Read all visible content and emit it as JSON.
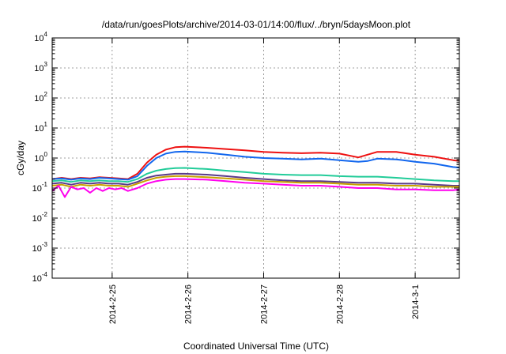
{
  "chart_data": {
    "type": "line",
    "title": "/data/run/goesPlots/archive/2014-03-01/14:00/flux/../bryn/5daysMoon.plot",
    "xlabel": "Coordinated Universal Time (UTC)",
    "ylabel": "cGy/day",
    "y_scale": "log",
    "ylim": [
      0.0001,
      10000
    ],
    "xlim": [
      "2014-02-24T05:00",
      "2014-03-01T14:00"
    ],
    "grid": true,
    "legend": "none",
    "y_ticks": [
      {
        "value": 0.0001,
        "base": "10",
        "exp": "-4"
      },
      {
        "value": 0.001,
        "base": "10",
        "exp": "-3"
      },
      {
        "value": 0.01,
        "base": "10",
        "exp": "-2"
      },
      {
        "value": 0.1,
        "base": "10",
        "exp": "-1"
      },
      {
        "value": 1,
        "base": "10",
        "exp": "0"
      },
      {
        "value": 10,
        "base": "10",
        "exp": "1"
      },
      {
        "value": 100,
        "base": "10",
        "exp": "2"
      },
      {
        "value": 1000,
        "base": "10",
        "exp": "3"
      },
      {
        "value": 10000,
        "base": "10",
        "exp": "4"
      }
    ],
    "x_ticks": [
      {
        "value": "2014-02-25T00:00",
        "label": "2014-2-25"
      },
      {
        "value": "2014-02-26T00:00",
        "label": "2014-2-26"
      },
      {
        "value": "2014-02-27T00:00",
        "label": "2014-2-27"
      },
      {
        "value": "2014-02-28T00:00",
        "label": "2014-2-28"
      },
      {
        "value": "2014-03-01T00:00",
        "label": "2014-3-1"
      }
    ],
    "series": [
      {
        "color": "#ee1111",
        "x": [
          "2014-02-24T05:00",
          "2014-02-24T08:00",
          "2014-02-24T11:00",
          "2014-02-24T14:00",
          "2014-02-24T17:00",
          "2014-02-24T20:00",
          "2014-02-24T23:00",
          "2014-02-25T02:00",
          "2014-02-25T05:00",
          "2014-02-25T08:00",
          "2014-02-25T11:00",
          "2014-02-25T14:00",
          "2014-02-25T17:00",
          "2014-02-25T20:00",
          "2014-02-25T23:00",
          "2014-02-26T06:00",
          "2014-02-26T12:00",
          "2014-02-26T18:00",
          "2014-02-27T00:00",
          "2014-02-27T06:00",
          "2014-02-27T12:00",
          "2014-02-27T18:00",
          "2014-02-28T00:00",
          "2014-02-28T06:00",
          "2014-02-28T09:00",
          "2014-02-28T12:00",
          "2014-02-28T18:00",
          "2014-03-01T00:00",
          "2014-03-01T06:00",
          "2014-03-01T12:00",
          "2014-03-01T14:00"
        ],
        "y": [
          0.2,
          0.22,
          0.2,
          0.22,
          0.21,
          0.23,
          0.22,
          0.21,
          0.2,
          0.3,
          0.7,
          1.3,
          1.9,
          2.3,
          2.4,
          2.2,
          2.0,
          1.8,
          1.6,
          1.5,
          1.45,
          1.5,
          1.4,
          1.05,
          1.3,
          1.6,
          1.6,
          1.3,
          1.1,
          0.85,
          0.8
        ]
      },
      {
        "color": "#1166ee",
        "x": [
          "2014-02-24T05:00",
          "2014-02-24T08:00",
          "2014-02-24T11:00",
          "2014-02-24T14:00",
          "2014-02-24T17:00",
          "2014-02-24T20:00",
          "2014-02-24T23:00",
          "2014-02-25T02:00",
          "2014-02-25T05:00",
          "2014-02-25T08:00",
          "2014-02-25T11:00",
          "2014-02-25T14:00",
          "2014-02-25T17:00",
          "2014-02-25T20:00",
          "2014-02-25T23:00",
          "2014-02-26T06:00",
          "2014-02-26T12:00",
          "2014-02-26T18:00",
          "2014-02-27T00:00",
          "2014-02-27T06:00",
          "2014-02-27T12:00",
          "2014-02-27T18:00",
          "2014-02-28T00:00",
          "2014-02-28T06:00",
          "2014-02-28T09:00",
          "2014-02-28T12:00",
          "2014-02-28T18:00",
          "2014-03-01T00:00",
          "2014-03-01T06:00",
          "2014-03-01T12:00",
          "2014-03-01T14:00"
        ],
        "y": [
          0.2,
          0.21,
          0.19,
          0.21,
          0.2,
          0.22,
          0.21,
          0.2,
          0.19,
          0.25,
          0.55,
          1.0,
          1.4,
          1.6,
          1.65,
          1.5,
          1.3,
          1.1,
          1.0,
          0.95,
          0.9,
          0.95,
          0.85,
          0.75,
          0.8,
          0.95,
          0.9,
          0.75,
          0.65,
          0.5,
          0.48
        ]
      },
      {
        "color": "#22cc99",
        "x": [
          "2014-02-24T05:00",
          "2014-02-24T08:00",
          "2014-02-24T11:00",
          "2014-02-24T14:00",
          "2014-02-24T17:00",
          "2014-02-24T20:00",
          "2014-02-24T23:00",
          "2014-02-25T02:00",
          "2014-02-25T05:00",
          "2014-02-25T08:00",
          "2014-02-25T11:00",
          "2014-02-25T14:00",
          "2014-02-25T17:00",
          "2014-02-25T20:00",
          "2014-02-25T23:00",
          "2014-02-26T06:00",
          "2014-02-26T12:00",
          "2014-02-26T18:00",
          "2014-02-27T00:00",
          "2014-02-27T06:00",
          "2014-02-27T12:00",
          "2014-02-27T18:00",
          "2014-02-28T00:00",
          "2014-02-28T06:00",
          "2014-02-28T12:00",
          "2014-02-28T18:00",
          "2014-03-01T00:00",
          "2014-03-01T06:00",
          "2014-03-01T12:00",
          "2014-03-01T14:00"
        ],
        "y": [
          0.17,
          0.18,
          0.16,
          0.18,
          0.17,
          0.18,
          0.17,
          0.17,
          0.16,
          0.2,
          0.3,
          0.38,
          0.43,
          0.46,
          0.47,
          0.43,
          0.38,
          0.34,
          0.3,
          0.28,
          0.27,
          0.27,
          0.25,
          0.24,
          0.24,
          0.22,
          0.2,
          0.18,
          0.17,
          0.17
        ]
      },
      {
        "color": "#5a3a8a",
        "x": [
          "2014-02-24T05:00",
          "2014-02-24T08:00",
          "2014-02-24T11:00",
          "2014-02-24T14:00",
          "2014-02-24T17:00",
          "2014-02-24T20:00",
          "2014-02-24T23:00",
          "2014-02-25T02:00",
          "2014-02-25T05:00",
          "2014-02-25T08:00",
          "2014-02-25T11:00",
          "2014-02-25T14:00",
          "2014-02-25T17:00",
          "2014-02-25T20:00",
          "2014-02-25T23:00",
          "2014-02-26T06:00",
          "2014-02-26T12:00",
          "2014-02-26T18:00",
          "2014-02-27T00:00",
          "2014-02-27T06:00",
          "2014-02-27T12:00",
          "2014-02-27T18:00",
          "2014-02-28T00:00",
          "2014-02-28T06:00",
          "2014-02-28T12:00",
          "2014-02-28T18:00",
          "2014-03-01T00:00",
          "2014-03-01T06:00",
          "2014-03-01T12:00",
          "2014-03-01T14:00"
        ],
        "y": [
          0.14,
          0.15,
          0.13,
          0.15,
          0.14,
          0.15,
          0.14,
          0.14,
          0.13,
          0.16,
          0.22,
          0.26,
          0.28,
          0.3,
          0.3,
          0.28,
          0.25,
          0.22,
          0.2,
          0.18,
          0.17,
          0.17,
          0.16,
          0.15,
          0.15,
          0.14,
          0.14,
          0.13,
          0.12,
          0.12
        ]
      },
      {
        "color": "#c8a000",
        "x": [
          "2014-02-24T05:00",
          "2014-02-24T08:00",
          "2014-02-24T11:00",
          "2014-02-24T14:00",
          "2014-02-24T17:00",
          "2014-02-24T20:00",
          "2014-02-24T23:00",
          "2014-02-25T02:00",
          "2014-02-25T05:00",
          "2014-02-25T08:00",
          "2014-02-25T11:00",
          "2014-02-25T14:00",
          "2014-02-25T17:00",
          "2014-02-25T20:00",
          "2014-02-25T23:00",
          "2014-02-26T06:00",
          "2014-02-26T12:00",
          "2014-02-26T18:00",
          "2014-02-27T00:00",
          "2014-02-27T06:00",
          "2014-02-27T12:00",
          "2014-02-27T18:00",
          "2014-02-28T00:00",
          "2014-02-28T06:00",
          "2014-02-28T12:00",
          "2014-02-28T18:00",
          "2014-03-01T00:00",
          "2014-03-01T06:00",
          "2014-03-01T12:00",
          "2014-03-01T14:00"
        ],
        "y": [
          0.12,
          0.13,
          0.11,
          0.13,
          0.12,
          0.13,
          0.12,
          0.12,
          0.11,
          0.14,
          0.18,
          0.22,
          0.24,
          0.25,
          0.25,
          0.23,
          0.21,
          0.19,
          0.17,
          0.16,
          0.15,
          0.15,
          0.14,
          0.13,
          0.13,
          0.12,
          0.12,
          0.11,
          0.11,
          0.11
        ]
      },
      {
        "color": "#ff00ee",
        "x": [
          "2014-02-24T05:00",
          "2014-02-24T07:00",
          "2014-02-24T09:00",
          "2014-02-24T11:00",
          "2014-02-24T13:00",
          "2014-02-24T15:00",
          "2014-02-24T17:00",
          "2014-02-24T19:00",
          "2014-02-24T21:00",
          "2014-02-24T23:00",
          "2014-02-25T01:00",
          "2014-02-25T03:00",
          "2014-02-25T05:00",
          "2014-02-25T08:00",
          "2014-02-25T11:00",
          "2014-02-25T14:00",
          "2014-02-25T17:00",
          "2014-02-25T20:00",
          "2014-02-25T23:00",
          "2014-02-26T06:00",
          "2014-02-26T12:00",
          "2014-02-26T18:00",
          "2014-02-27T00:00",
          "2014-02-27T06:00",
          "2014-02-27T12:00",
          "2014-02-27T18:00",
          "2014-02-28T00:00",
          "2014-02-28T06:00",
          "2014-02-28T12:00",
          "2014-02-28T18:00",
          "2014-03-01T00:00",
          "2014-03-01T06:00",
          "2014-03-01T12:00",
          "2014-03-01T14:00"
        ],
        "y": [
          0.08,
          0.12,
          0.05,
          0.11,
          0.09,
          0.1,
          0.07,
          0.1,
          0.08,
          0.1,
          0.09,
          0.1,
          0.08,
          0.1,
          0.14,
          0.17,
          0.19,
          0.2,
          0.2,
          0.19,
          0.17,
          0.15,
          0.14,
          0.13,
          0.12,
          0.12,
          0.11,
          0.1,
          0.1,
          0.09,
          0.09,
          0.085,
          0.085,
          0.09
        ]
      }
    ]
  }
}
